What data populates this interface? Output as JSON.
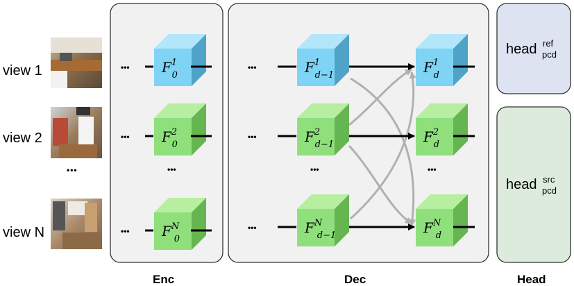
{
  "views": [
    {
      "label": "view 1"
    },
    {
      "label": "view 2"
    },
    {
      "label": "view N"
    }
  ],
  "ellipsis": "•••",
  "feature_symbol": "F",
  "enc": {
    "label": "Enc",
    "cubes": [
      {
        "sub": "0",
        "sup": "1",
        "color": "blue"
      },
      {
        "sub": "0",
        "sup": "2",
        "color": "green"
      },
      {
        "sub": "0",
        "sup": "N",
        "color": "green"
      }
    ]
  },
  "dec": {
    "label": "Dec",
    "input_cubes": [
      {
        "sub": "d−1",
        "sup": "1",
        "color": "blue"
      },
      {
        "sub": "d−1",
        "sup": "2",
        "color": "green"
      },
      {
        "sub": "d−1",
        "sup": "N",
        "color": "green"
      }
    ],
    "output_cubes": [
      {
        "sub": "d",
        "sup": "1",
        "color": "blue"
      },
      {
        "sub": "d",
        "sup": "2",
        "color": "green"
      },
      {
        "sub": "d",
        "sup": "N",
        "color": "green"
      }
    ]
  },
  "head": {
    "label": "Head",
    "ref": {
      "main": "head",
      "sup": "ref",
      "sub": "pcd",
      "color": "#dde3f1"
    },
    "src": {
      "main": "head",
      "sup": "src",
      "sub": "pcd",
      "color": "#dcebdc"
    }
  },
  "colors": {
    "blue_front": "#7fd3f4",
    "blue_top": "#b3e6fa",
    "blue_side": "#4fa3c8",
    "green_front": "#8fe07d",
    "green_top": "#b7ee9f",
    "green_side": "#65b551",
    "panel_fill": "#f1f1f1",
    "panel_stroke": "#333333",
    "cross_arrow": "#b0b0b0"
  }
}
